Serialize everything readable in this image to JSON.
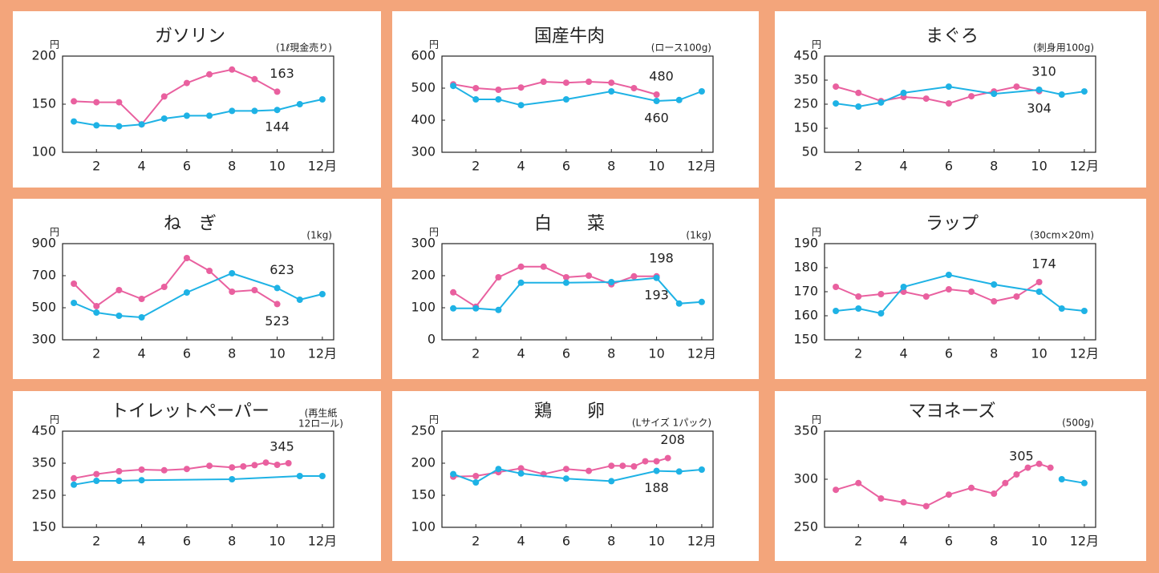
{
  "chart_data": [
    {
      "type": "line",
      "title": "ガソリン",
      "note": "(1ℓ現金売り)",
      "y_unit": "円",
      "xlim": [
        0.5,
        12.5
      ],
      "xticks": [
        2,
        4,
        6,
        8,
        10,
        {
          "value": 12,
          "label": "12月"
        }
      ],
      "ylim": [
        100,
        200
      ],
      "yticks": [
        100,
        150,
        200
      ],
      "series": [
        {
          "color": "#e9609f",
          "x": [
            1,
            2,
            3,
            4,
            5,
            6,
            7,
            8,
            9,
            10
          ],
          "values": [
            153,
            152,
            152,
            129,
            158,
            172,
            181,
            186,
            176,
            163
          ],
          "value_labels": [
            null,
            null,
            null,
            null,
            null,
            null,
            null,
            null,
            null,
            "163"
          ]
        },
        {
          "color": "#1eb2e5",
          "x": [
            1,
            2,
            3,
            4,
            5,
            6,
            7,
            8,
            9,
            10,
            11,
            12
          ],
          "values": [
            132,
            128,
            127,
            129,
            135,
            138,
            138,
            143,
            143,
            144,
            150,
            155
          ],
          "value_labels": [
            null,
            null,
            null,
            null,
            null,
            null,
            null,
            null,
            null,
            "144",
            null,
            null
          ]
        }
      ]
    },
    {
      "type": "line",
      "title": "国産牛肉",
      "note": "(ロース100g)",
      "y_unit": "円",
      "xlim": [
        0.5,
        12.5
      ],
      "xticks": [
        2,
        4,
        6,
        8,
        10,
        {
          "value": 12,
          "label": "12月"
        }
      ],
      "ylim": [
        300,
        600
      ],
      "yticks": [
        300,
        400,
        500,
        600
      ],
      "series": [
        {
          "color": "#e9609f",
          "x": [
            1,
            2,
            3,
            4,
            5,
            6,
            7,
            8,
            9,
            10
          ],
          "values": [
            512,
            500,
            495,
            502,
            520,
            517,
            520,
            517,
            500,
            480
          ],
          "value_labels": [
            null,
            null,
            null,
            null,
            null,
            null,
            null,
            null,
            null,
            "480"
          ]
        },
        {
          "color": "#1eb2e5",
          "x": [
            1,
            2,
            3,
            4,
            6,
            8,
            10,
            11,
            12
          ],
          "values": [
            507,
            465,
            465,
            447,
            465,
            490,
            460,
            463,
            490
          ],
          "value_labels": [
            null,
            null,
            null,
            null,
            null,
            null,
            "460",
            null,
            null
          ]
        }
      ]
    },
    {
      "type": "line",
      "title": "まぐろ",
      "note": "(刺身用100g)",
      "y_unit": "円",
      "xlim": [
        0.5,
        12.5
      ],
      "xticks": [
        2,
        4,
        6,
        8,
        10,
        {
          "value": 12,
          "label": "12月"
        }
      ],
      "ylim": [
        50,
        450
      ],
      "yticks": [
        50,
        150,
        250,
        350,
        450
      ],
      "series": [
        {
          "color": "#e9609f",
          "x": [
            1,
            2,
            3,
            4,
            5,
            6,
            7,
            8,
            9,
            10
          ],
          "values": [
            323,
            297,
            263,
            280,
            273,
            253,
            283,
            303,
            323,
            304
          ],
          "value_labels": [
            null,
            null,
            null,
            null,
            null,
            null,
            null,
            null,
            null,
            "304"
          ]
        },
        {
          "color": "#1eb2e5",
          "x": [
            1,
            2,
            3,
            4,
            6,
            8,
            10,
            11,
            12
          ],
          "values": [
            253,
            240,
            257,
            297,
            323,
            293,
            310,
            290,
            303
          ],
          "value_labels": [
            null,
            null,
            null,
            null,
            null,
            null,
            "310",
            null,
            null
          ]
        }
      ]
    },
    {
      "type": "line",
      "title": "ね　ぎ",
      "note": "(1kg)",
      "y_unit": "円",
      "xlim": [
        0.5,
        12.5
      ],
      "xticks": [
        2,
        4,
        6,
        8,
        10,
        {
          "value": 12,
          "label": "12月"
        }
      ],
      "ylim": [
        300,
        900
      ],
      "yticks": [
        300,
        500,
        700,
        900
      ],
      "series": [
        {
          "color": "#e9609f",
          "x": [
            1,
            2,
            3,
            4,
            5,
            6,
            7,
            8,
            9,
            10
          ],
          "values": [
            650,
            510,
            610,
            555,
            630,
            810,
            730,
            600,
            610,
            523
          ],
          "value_labels": [
            null,
            null,
            null,
            null,
            null,
            null,
            null,
            null,
            null,
            "523"
          ]
        },
        {
          "color": "#1eb2e5",
          "x": [
            1,
            2,
            3,
            4,
            6,
            8,
            10,
            11,
            12
          ],
          "values": [
            530,
            470,
            450,
            440,
            595,
            715,
            623,
            550,
            585
          ],
          "value_labels": [
            null,
            null,
            null,
            null,
            null,
            null,
            "623",
            null,
            null
          ]
        }
      ]
    },
    {
      "type": "line",
      "title": "白　　菜",
      "note": "(1kg)",
      "y_unit": "円",
      "xlim": [
        0.5,
        12.5
      ],
      "xticks": [
        2,
        4,
        6,
        8,
        10,
        {
          "value": 12,
          "label": "12月"
        }
      ],
      "ylim": [
        0,
        300
      ],
      "yticks": [
        0,
        100,
        200,
        300
      ],
      "series": [
        {
          "color": "#e9609f",
          "x": [
            1,
            2,
            3,
            4,
            5,
            6,
            7,
            8,
            9,
            10
          ],
          "values": [
            148,
            103,
            195,
            228,
            228,
            195,
            200,
            173,
            198,
            198
          ],
          "value_labels": [
            null,
            null,
            null,
            null,
            null,
            null,
            null,
            null,
            null,
            "198"
          ]
        },
        {
          "color": "#1eb2e5",
          "x": [
            1,
            2,
            3,
            4,
            6,
            8,
            10,
            11,
            12
          ],
          "values": [
            98,
            98,
            93,
            178,
            178,
            180,
            193,
            113,
            118
          ],
          "value_labels": [
            null,
            null,
            null,
            null,
            null,
            null,
            "193",
            null,
            null
          ]
        }
      ]
    },
    {
      "type": "line",
      "title": "ラップ",
      "note": "(30cm×20m)",
      "y_unit": "円",
      "xlim": [
        0.5,
        12.5
      ],
      "xticks": [
        2,
        4,
        6,
        8,
        10,
        {
          "value": 12,
          "label": "12月"
        }
      ],
      "ylim": [
        150,
        190
      ],
      "yticks": [
        150,
        160,
        170,
        180,
        190
      ],
      "series": [
        {
          "color": "#e9609f",
          "x": [
            1,
            2,
            3,
            4,
            5,
            6,
            7,
            8,
            9,
            10
          ],
          "values": [
            172,
            168,
            169,
            170,
            168,
            171,
            170,
            166,
            168,
            174
          ],
          "value_labels": [
            null,
            null,
            null,
            null,
            null,
            null,
            null,
            null,
            null,
            "174"
          ]
        },
        {
          "color": "#1eb2e5",
          "x": [
            1,
            2,
            3,
            4,
            6,
            8,
            10,
            11,
            12
          ],
          "values": [
            162,
            163,
            161,
            172,
            177,
            173,
            170,
            163,
            162
          ]
        }
      ]
    },
    {
      "type": "line",
      "title": "トイレットペーパー",
      "note_lines": [
        "(再生紙",
        "12ロール)"
      ],
      "y_unit": "円",
      "xlim": [
        0.5,
        12.5
      ],
      "xticks": [
        2,
        4,
        6,
        8,
        10,
        {
          "value": 12,
          "label": "12月"
        }
      ],
      "ylim": [
        150,
        450
      ],
      "yticks": [
        150,
        250,
        350,
        450
      ],
      "series": [
        {
          "color": "#e9609f",
          "x": [
            1,
            2,
            3,
            4,
            5,
            6,
            7,
            8,
            8.5,
            9,
            9.5,
            10,
            10.5
          ],
          "values": [
            303,
            316,
            325,
            330,
            328,
            332,
            342,
            337,
            340,
            344,
            352,
            345,
            350
          ],
          "value_labels": [
            null,
            null,
            null,
            null,
            null,
            null,
            null,
            null,
            null,
            null,
            null,
            "345",
            null
          ]
        },
        {
          "color": "#1eb2e5",
          "x": [
            1,
            2,
            3,
            4,
            8,
            11,
            12
          ],
          "values": [
            283,
            295,
            295,
            297,
            300,
            310,
            310
          ]
        }
      ]
    },
    {
      "type": "line",
      "title": "鶏　　卵",
      "note": "(Lサイズ 1パック)",
      "y_unit": "円",
      "xlim": [
        0.5,
        12.5
      ],
      "xticks": [
        2,
        4,
        6,
        8,
        10,
        {
          "value": 12,
          "label": "12月"
        }
      ],
      "ylim": [
        100,
        250
      ],
      "yticks": [
        100,
        150,
        200,
        250
      ],
      "series": [
        {
          "color": "#e9609f",
          "x": [
            1,
            2,
            3,
            4,
            5,
            6,
            7,
            8,
            8.5,
            9,
            9.5,
            10,
            10.5
          ],
          "values": [
            179,
            180,
            186,
            192,
            183,
            191,
            188,
            196,
            196,
            195,
            203,
            203,
            208
          ],
          "value_labels": [
            null,
            null,
            null,
            null,
            null,
            null,
            null,
            null,
            null,
            null,
            null,
            null,
            "208"
          ]
        },
        {
          "color": "#1eb2e5",
          "x": [
            1,
            2,
            3,
            4,
            6,
            8,
            10,
            11,
            12
          ],
          "values": [
            183,
            170,
            191,
            184,
            176,
            172,
            188,
            187,
            190
          ],
          "value_labels": [
            null,
            null,
            null,
            null,
            null,
            null,
            "188",
            null,
            null
          ]
        }
      ]
    },
    {
      "type": "line",
      "title": "マヨネーズ",
      "note": "(500g)",
      "y_unit": "円",
      "xlim": [
        0.5,
        12.5
      ],
      "xticks": [
        2,
        4,
        6,
        8,
        10,
        {
          "value": 12,
          "label": "12月"
        }
      ],
      "ylim": [
        250,
        350
      ],
      "yticks": [
        250,
        300,
        350
      ],
      "series": [
        {
          "color": "#e9609f",
          "x": [
            1,
            2,
            3,
            4,
            5,
            6,
            7,
            8,
            8.5,
            9,
            9.5,
            10,
            10.5
          ],
          "values": [
            289,
            296,
            280,
            276,
            272,
            284,
            291,
            285,
            296,
            305,
            312,
            316,
            312
          ],
          "value_labels": [
            null,
            null,
            null,
            null,
            null,
            null,
            null,
            null,
            null,
            "305",
            null,
            null,
            null
          ]
        },
        {
          "color": "#1eb2e5",
          "x": [
            11,
            12
          ],
          "values": [
            300,
            296
          ]
        }
      ]
    }
  ]
}
